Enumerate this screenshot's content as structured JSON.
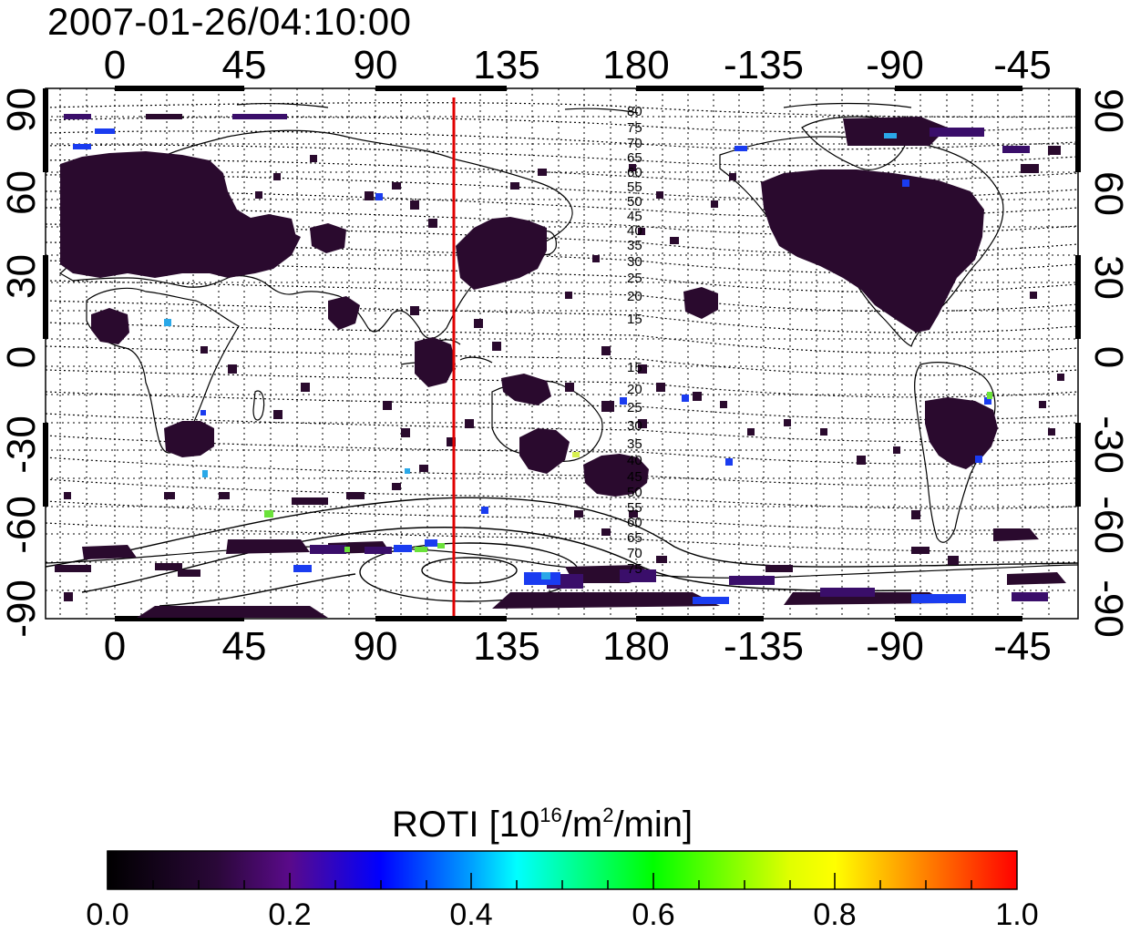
{
  "title": "2007-01-26/04:10:00",
  "map": {
    "lon_ticks": [
      "0",
      "45",
      "90",
      "135",
      "180",
      "-135",
      "-90",
      "-45"
    ],
    "lat_ticks": [
      "90",
      "60",
      "30",
      "0",
      "-30",
      "-60",
      "-90"
    ],
    "meridian_line_lon": 121,
    "meridian_line_color": "#e00000",
    "contour_labels": [
      "80",
      "75",
      "70",
      "65",
      "60",
      "55",
      "50",
      "45",
      "40",
      "35",
      "30",
      "25",
      "20",
      "15",
      "15",
      "20",
      "25",
      "30",
      "35",
      "40",
      "45",
      "50",
      "55",
      "60",
      "65",
      "70",
      "75"
    ],
    "colors": {
      "dark_cell": "#2a0a2e",
      "mid_cell": "#3a0e6a",
      "blue_cell": "#1a3cf0",
      "cyan_cell": "#2aa8e8",
      "green_cell": "#6be23a",
      "yellow_cell": "#d8f050"
    }
  },
  "colorbar": {
    "label_main": "ROTI  [10",
    "label_sup1": "16",
    "label_mid": "/m",
    "label_sup2": "2",
    "label_end": "/min]",
    "ticks": [
      "0.0",
      "0.2",
      "0.4",
      "0.6",
      "0.8",
      "1.0"
    ],
    "colormap": [
      "#000000",
      "#5a0a8a",
      "#0000ff",
      "#00ffff",
      "#00ff00",
      "#ffff00",
      "#ff8000",
      "#ff0000"
    ]
  }
}
